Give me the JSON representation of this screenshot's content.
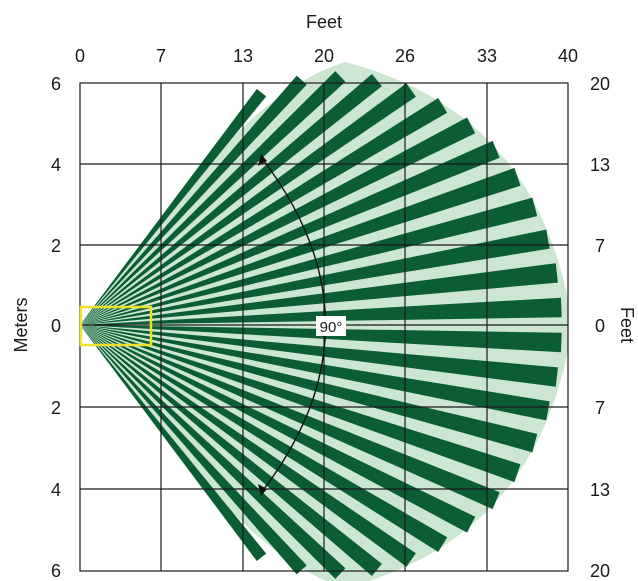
{
  "axes": {
    "top_title": "Feet",
    "left_title": "Meters",
    "right_title": "Feet",
    "top_ticks": [
      "0",
      "7",
      "13",
      "20",
      "26",
      "33",
      "40"
    ],
    "left_ticks": [
      "6",
      "4",
      "2",
      "0",
      "2",
      "4",
      "6"
    ],
    "right_ticks": [
      "20",
      "13",
      "7",
      "0",
      "7",
      "13",
      "20"
    ]
  },
  "coverage": {
    "angle_label": "90°",
    "beam_count": 26,
    "colors": {
      "field": "#cde6d2",
      "beam": "#0b5e34",
      "zone_outline": "#f0e22a",
      "grid": "#1a1a1a"
    }
  }
}
